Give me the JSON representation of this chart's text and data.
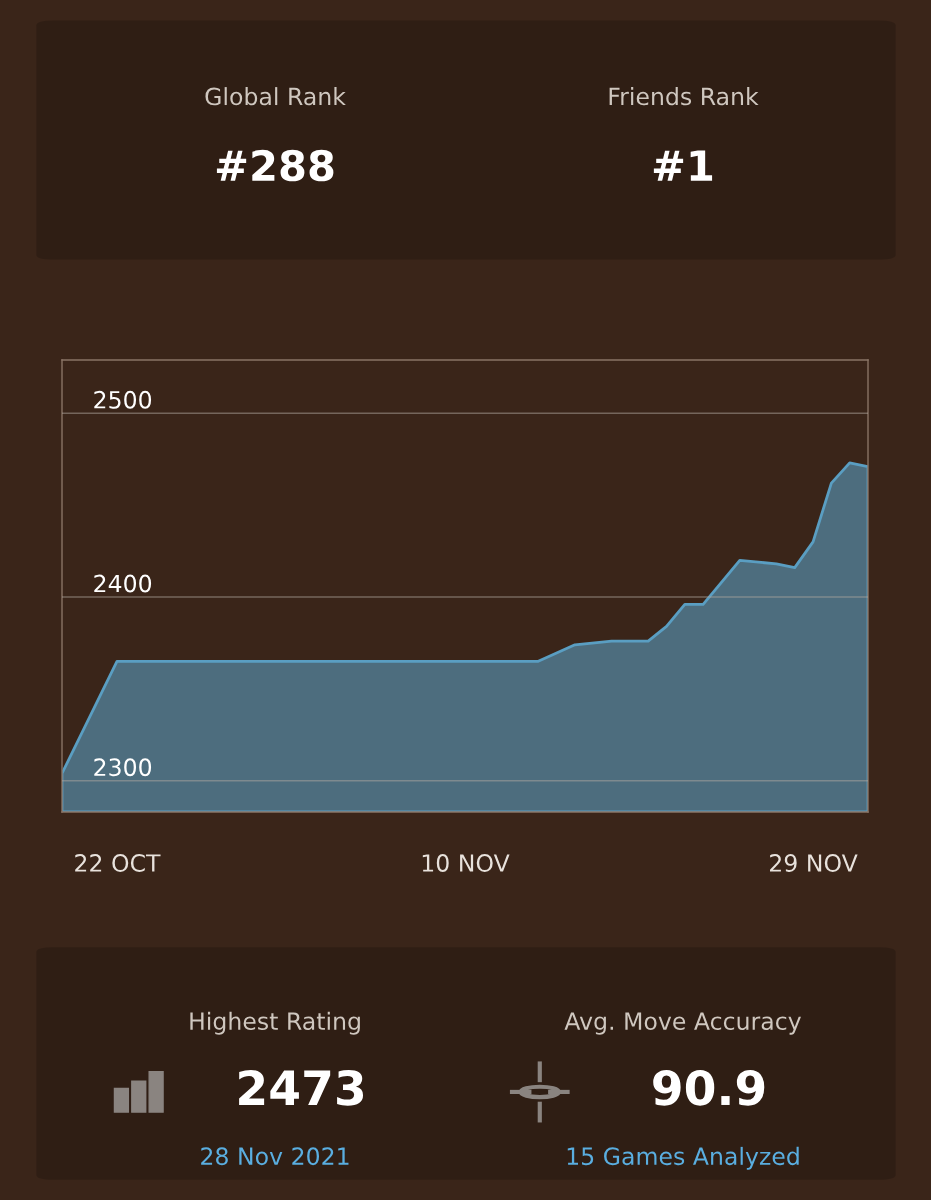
{
  "chart_data": [
    {
      "type": "other",
      "annotations": [
        "Global Rank",
        "#288",
        "Friends Rank",
        "#1"
      ]
    },
    {
      "type": "area",
      "x": [
        "2021-10-19",
        "2021-10-22",
        "2021-11-14",
        "2021-11-16",
        "2021-11-18",
        "2021-11-20",
        "2021-11-21",
        "2021-11-22",
        "2021-11-23",
        "2021-11-25",
        "2021-11-27",
        "2021-11-28",
        "2021-11-29",
        "2021-11-30",
        "2021-12-01",
        "2021-12-02"
      ],
      "series": [
        {
          "color": "#5a9ec2",
          "values": [
            2304,
            2365,
            2365,
            2374,
            2376,
            2376,
            2384,
            2396,
            2396,
            2420,
            2418,
            2416,
            2430,
            2462,
            2473,
            2471
          ]
        }
      ],
      "xlim": [
        "2021-10-19",
        "2021-12-02"
      ],
      "xticks": [
        {
          "value": "2021-10-22",
          "label": "22 OCT"
        },
        {
          "value": "2021-11-10",
          "label": "10 NOV"
        },
        {
          "value": "2021-11-29",
          "label": "29 NOV"
        }
      ],
      "ylim": [
        2283,
        2529
      ],
      "yticks": [
        2300,
        2400,
        2500
      ],
      "grid": "y",
      "marker": "none",
      "line_style": "solid"
    },
    {
      "type": "other",
      "annotations": [
        "Highest Rating",
        "2473",
        "28 Nov 2021",
        "Avg. Move Accuracy",
        "90.9",
        "15 Games Analyzed"
      ]
    }
  ]
}
